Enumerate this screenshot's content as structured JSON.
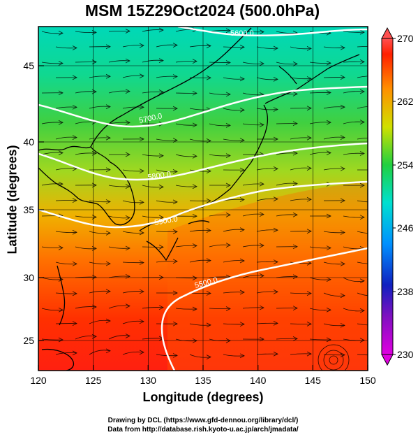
{
  "title": "MSM 15Z29Oct2024 (500.0hPa)",
  "x_axis": {
    "label": "Longitude (degrees)",
    "ticks": [
      "120",
      "125",
      "130",
      "135",
      "140",
      "145",
      "150"
    ]
  },
  "y_axis": {
    "label": "Latitude  (degrees)",
    "ticks": [
      "25",
      "30",
      "35",
      "40",
      "45"
    ]
  },
  "colorbar": {
    "ticks": [
      "270",
      "262",
      "254",
      "246",
      "238",
      "230"
    ],
    "min": 230,
    "max": 270,
    "colors": [
      "#e000e0",
      "#2020c0",
      "#0080ff",
      "#00e0d0",
      "#20d040",
      "#d0e000",
      "#ff9000",
      "#ff2000",
      "#ff5050"
    ]
  },
  "contour_labels": [
    "5600.0",
    "5700.0",
    "5800.0",
    "5900.0",
    "5500.0"
  ],
  "credits": {
    "line1": "Drawing by DCL (https://www.gfd-dennou.org/library/dcl/)",
    "line2": "Data from http://database.rish.kyoto-u.ac.jp/arch/jmadata/"
  },
  "colors": {
    "frame": "#000000",
    "contour": "#ffffff",
    "coast": "#000000",
    "grid": "#000000"
  }
}
